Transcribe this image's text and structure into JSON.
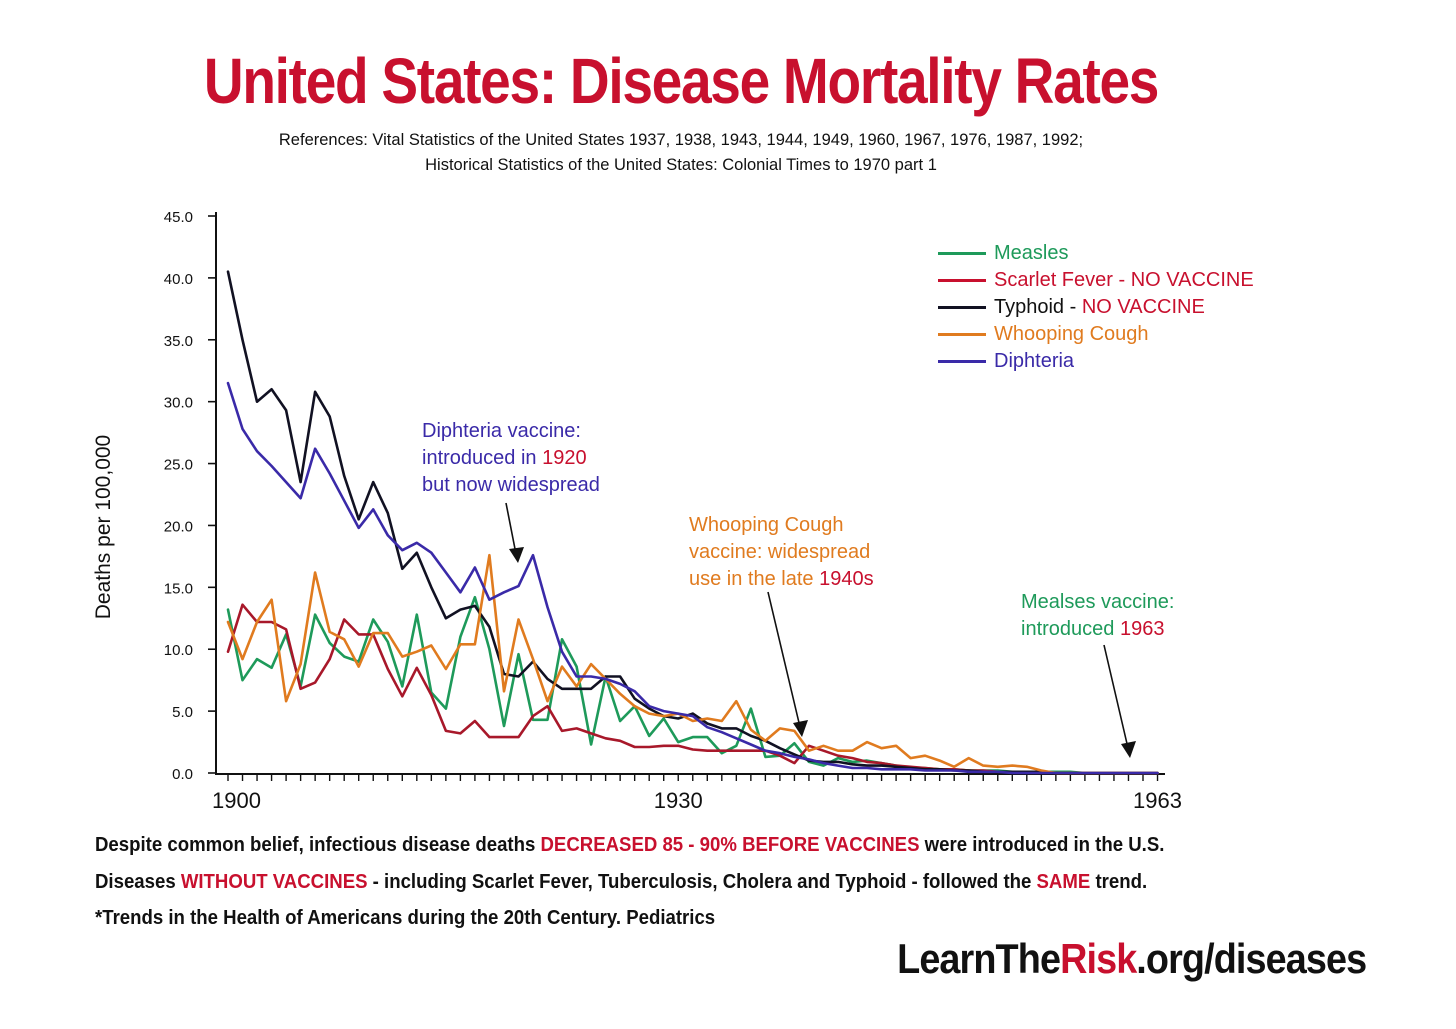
{
  "title": "United States: Disease Mortality Rates",
  "references": [
    "References: Vital Statistics of the United States 1937, 1938, 1943, 1944, 1949, 1960, 1967, 1976, 1987, 1992;",
    "Historical Statistics of the United States: Colonial Times to 1970 part 1"
  ],
  "legend": [
    {
      "name": "Measles",
      "suffix": "",
      "color": "#1e9a5a"
    },
    {
      "name": "Scarlet Fever",
      "suffix": "NO VACCINE",
      "color": "#c8102e"
    },
    {
      "name": "Typhoid",
      "suffix": "NO VACCINE",
      "color": "#111122"
    },
    {
      "name": "Whooping Cough",
      "suffix": "",
      "color": "#e07b1f"
    },
    {
      "name": "Diphteria",
      "suffix": "",
      "color": "#3a2aa8"
    }
  ],
  "legend_separator": " - ",
  "annotations": {
    "diphtheria": {
      "line1": "Diphteria vaccine:",
      "line2_a": "introduced in ",
      "line2_year": "1920",
      "line3": "but now widespread"
    },
    "whooping": {
      "line1": "Whooping Cough",
      "line2": "vaccine: widespread",
      "line3_a": "use in the late ",
      "line3_year": "1940s"
    },
    "measles": {
      "line1": "Mealses vaccine:",
      "line2_a": "introduced ",
      "line2_year": "1963"
    }
  },
  "footer": {
    "line1_a": "Despite common belief, infectious disease deaths ",
    "line1_red": "DECREASED 85 - 90% BEFORE VACCINES",
    "line1_b": " were introduced in the U.S.",
    "line2_a": "Diseases ",
    "line2_red": "WITHOUT VACCINES",
    "line2_b": " - including Scarlet Fever, Tuberculosis, Cholera and Typhoid - followed the ",
    "line2_red2": "SAME",
    "line2_c": " trend.",
    "line3": "*Trends in the Health of Americans during the 20th Century. Pediatrics"
  },
  "brand": {
    "a": "LearnThe",
    "b": "Risk",
    "c": ".org/diseases"
  },
  "chart_data": {
    "type": "line",
    "title": "United States: Disease Mortality Rates",
    "xlabel": "",
    "ylabel": "Deaths per 100,000",
    "xlim": [
      1899,
      1964
    ],
    "ylim": [
      0,
      45
    ],
    "y_ticks": [
      "0.0",
      "5.0",
      "10.0",
      "15.0",
      "20.0",
      "25.0",
      "30.0",
      "35.0",
      "40.0",
      "45.0"
    ],
    "x_tick_labels": [
      {
        "x": 1900,
        "label": "1900"
      },
      {
        "x": 1930,
        "label": "1930"
      },
      {
        "x": 1963,
        "label": "1963"
      }
    ],
    "series": [
      {
        "name": "Measles",
        "color": "#1e9a5a",
        "x": [
          1899,
          1900,
          1901,
          1902,
          1903,
          1904,
          1905,
          1906,
          1907,
          1908,
          1909,
          1910,
          1911,
          1912,
          1913,
          1914,
          1915,
          1916,
          1917,
          1918,
          1919,
          1920,
          1921,
          1922,
          1923,
          1924,
          1925,
          1926,
          1927,
          1928,
          1929,
          1930,
          1931,
          1932,
          1933,
          1934,
          1935,
          1936,
          1937,
          1938,
          1939,
          1940,
          1941,
          1942,
          1943,
          1944,
          1945,
          1946,
          1947,
          1948,
          1949,
          1950,
          1951,
          1952,
          1953,
          1954,
          1955,
          1956,
          1957,
          1958,
          1959,
          1960,
          1961,
          1962,
          1963
        ],
        "y": [
          13.2,
          7.5,
          9.2,
          8.5,
          11.2,
          7.0,
          12.8,
          10.5,
          9.4,
          9.0,
          12.4,
          10.6,
          7.0,
          12.8,
          6.5,
          5.2,
          11.0,
          14.2,
          10.0,
          3.8,
          9.6,
          4.3,
          4.3,
          10.8,
          8.6,
          2.3,
          7.8,
          4.2,
          5.4,
          3.0,
          4.4,
          2.5,
          2.9,
          2.9,
          1.6,
          2.2,
          5.2,
          1.3,
          1.4,
          2.4,
          0.9,
          0.6,
          1.2,
          0.9,
          1.0,
          0.8,
          0.6,
          0.4,
          0.4,
          0.3,
          0.3,
          0.2,
          0.2,
          0.2,
          0.1,
          0.1,
          0.1,
          0.1,
          0.1,
          0.0,
          0.0,
          0.0,
          0.0,
          0.0,
          0.0
        ]
      },
      {
        "name": "Scarlet Fever",
        "color": "#a8182a",
        "x": [
          1899,
          1900,
          1901,
          1902,
          1903,
          1904,
          1905,
          1906,
          1907,
          1908,
          1909,
          1910,
          1911,
          1912,
          1913,
          1914,
          1915,
          1916,
          1917,
          1918,
          1919,
          1920,
          1921,
          1922,
          1923,
          1924,
          1925,
          1926,
          1927,
          1928,
          1929,
          1930,
          1931,
          1932,
          1933,
          1934,
          1935,
          1936,
          1937,
          1938,
          1939,
          1940,
          1941,
          1942,
          1943,
          1944,
          1945,
          1946,
          1947,
          1948,
          1949,
          1950,
          1951,
          1952,
          1953,
          1954,
          1955,
          1956,
          1957,
          1958,
          1959,
          1960,
          1961,
          1962,
          1963
        ],
        "y": [
          9.8,
          13.6,
          12.2,
          12.2,
          11.6,
          6.8,
          7.3,
          9.2,
          12.4,
          11.2,
          11.2,
          8.4,
          6.2,
          8.5,
          6.3,
          3.4,
          3.2,
          4.2,
          2.9,
          2.9,
          2.9,
          4.6,
          5.4,
          3.4,
          3.6,
          3.2,
          2.8,
          2.6,
          2.1,
          2.1,
          2.2,
          2.2,
          1.9,
          1.8,
          1.8,
          1.8,
          1.8,
          1.8,
          1.4,
          0.8,
          2.2,
          1.8,
          1.4,
          1.2,
          0.9,
          0.8,
          0.6,
          0.5,
          0.4,
          0.3,
          0.3,
          0.2,
          0.2,
          0.1,
          0.1,
          0.1,
          0.1,
          0.0,
          0.0,
          0.0,
          0.0,
          0.0,
          0.0,
          0.0,
          0.0
        ]
      },
      {
        "name": "Typhoid",
        "color": "#111122",
        "x": [
          1899,
          1900,
          1901,
          1902,
          1903,
          1904,
          1905,
          1906,
          1907,
          1908,
          1909,
          1910,
          1911,
          1912,
          1913,
          1914,
          1915,
          1916,
          1917,
          1918,
          1919,
          1920,
          1921,
          1922,
          1923,
          1924,
          1925,
          1926,
          1927,
          1928,
          1929,
          1930,
          1931,
          1932,
          1933,
          1934,
          1935,
          1936,
          1937,
          1938,
          1939,
          1940,
          1941,
          1942,
          1943,
          1944,
          1945,
          1946,
          1947,
          1948,
          1949,
          1950,
          1951,
          1952,
          1953,
          1954,
          1955,
          1956,
          1957,
          1958,
          1959,
          1960,
          1961,
          1962,
          1963
        ],
        "y": [
          40.5,
          35.0,
          30.0,
          31.0,
          29.3,
          23.5,
          30.8,
          28.8,
          24.0,
          20.5,
          23.5,
          21.0,
          16.5,
          17.8,
          15.0,
          12.5,
          13.2,
          13.5,
          11.8,
          8.0,
          7.8,
          9.0,
          7.6,
          6.8,
          6.8,
          6.8,
          7.8,
          7.8,
          6.0,
          5.2,
          4.6,
          4.4,
          4.8,
          4.0,
          3.6,
          3.6,
          3.0,
          2.6,
          2.0,
          1.5,
          1.0,
          0.9,
          0.9,
          0.7,
          0.6,
          0.6,
          0.5,
          0.4,
          0.3,
          0.3,
          0.2,
          0.2,
          0.1,
          0.1,
          0.1,
          0.1,
          0.1,
          0.0,
          0.0,
          0.0,
          0.0,
          0.0,
          0.0,
          0.0,
          0.0
        ]
      },
      {
        "name": "Whooping Cough",
        "color": "#e07b1f",
        "x": [
          1899,
          1900,
          1901,
          1902,
          1903,
          1904,
          1905,
          1906,
          1907,
          1908,
          1909,
          1910,
          1911,
          1912,
          1913,
          1914,
          1915,
          1916,
          1917,
          1918,
          1919,
          1920,
          1921,
          1922,
          1923,
          1924,
          1925,
          1926,
          1927,
          1928,
          1929,
          1930,
          1931,
          1932,
          1933,
          1934,
          1935,
          1936,
          1937,
          1938,
          1939,
          1940,
          1941,
          1942,
          1943,
          1944,
          1945,
          1946,
          1947,
          1948,
          1949,
          1950,
          1951,
          1952,
          1953,
          1954,
          1955,
          1956,
          1957,
          1958,
          1959,
          1960,
          1961,
          1962,
          1963
        ],
        "y": [
          12.2,
          9.2,
          12.2,
          14.0,
          5.8,
          8.8,
          16.2,
          11.4,
          10.8,
          8.6,
          11.3,
          11.3,
          9.4,
          9.8,
          10.3,
          8.4,
          10.4,
          10.4,
          17.6,
          6.6,
          12.4,
          9.2,
          5.8,
          8.6,
          7.0,
          8.8,
          7.6,
          6.4,
          5.4,
          4.8,
          4.6,
          4.8,
          4.2,
          4.4,
          4.2,
          5.8,
          3.5,
          2.6,
          3.6,
          3.4,
          1.8,
          2.2,
          1.8,
          1.8,
          2.5,
          2.0,
          2.2,
          1.2,
          1.4,
          1.0,
          0.5,
          1.2,
          0.6,
          0.5,
          0.6,
          0.5,
          0.2,
          0.0,
          0.0,
          0.0,
          0.0,
          0.0,
          0.0,
          0.0,
          0.0
        ]
      },
      {
        "name": "Diphteria",
        "color": "#3a2aa8",
        "x": [
          1899,
          1900,
          1901,
          1902,
          1903,
          1904,
          1905,
          1906,
          1907,
          1908,
          1909,
          1910,
          1911,
          1912,
          1913,
          1914,
          1915,
          1916,
          1917,
          1918,
          1919,
          1920,
          1921,
          1922,
          1923,
          1924,
          1925,
          1926,
          1927,
          1928,
          1929,
          1930,
          1931,
          1932,
          1933,
          1934,
          1935,
          1936,
          1937,
          1938,
          1939,
          1940,
          1941,
          1942,
          1943,
          1944,
          1945,
          1946,
          1947,
          1948,
          1949,
          1950,
          1951,
          1952,
          1953,
          1954,
          1955,
          1956,
          1957,
          1958,
          1959,
          1960,
          1961,
          1962,
          1963
        ],
        "y": [
          31.5,
          27.8,
          26.0,
          24.8,
          23.5,
          22.2,
          26.2,
          24.2,
          22.0,
          19.8,
          21.3,
          19.2,
          18.0,
          18.6,
          17.8,
          16.2,
          14.6,
          16.6,
          14.0,
          14.6,
          15.1,
          17.6,
          13.4,
          9.8,
          7.8,
          7.8,
          7.6,
          7.2,
          6.6,
          5.4,
          5.0,
          4.8,
          4.6,
          3.7,
          3.3,
          2.8,
          2.3,
          1.8,
          1.6,
          1.3,
          1.1,
          0.8,
          0.6,
          0.4,
          0.4,
          0.3,
          0.3,
          0.3,
          0.2,
          0.2,
          0.2,
          0.1,
          0.1,
          0.1,
          0.0,
          0.0,
          0.0,
          0.0,
          0.0,
          0.0,
          0.0,
          0.0,
          0.0,
          0.0,
          0.0
        ]
      }
    ]
  }
}
